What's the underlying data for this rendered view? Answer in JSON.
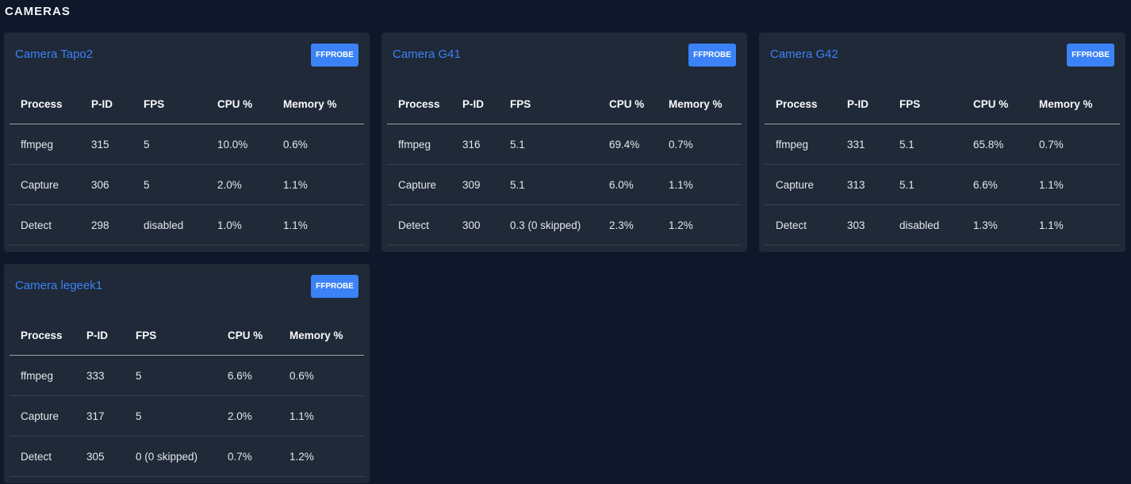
{
  "page": {
    "section_title": "CAMERAS"
  },
  "columns": [
    "Process",
    "P-ID",
    "FPS",
    "CPU %",
    "Memory %"
  ],
  "ffprobe_label": "FFPROBE",
  "cameras": [
    {
      "title": "Camera Tapo2",
      "rows": [
        [
          "ffmpeg",
          "315",
          "5",
          "10.0%",
          "0.6%"
        ],
        [
          "Capture",
          "306",
          "5",
          "2.0%",
          "1.1%"
        ],
        [
          "Detect",
          "298",
          "disabled",
          "1.0%",
          "1.1%"
        ]
      ]
    },
    {
      "title": "Camera G41",
      "rows": [
        [
          "ffmpeg",
          "316",
          "5.1",
          "69.4%",
          "0.7%"
        ],
        [
          "Capture",
          "309",
          "5.1",
          "6.0%",
          "1.1%"
        ],
        [
          "Detect",
          "300",
          "0.3 (0 skipped)",
          "2.3%",
          "1.2%"
        ]
      ]
    },
    {
      "title": "Camera G42",
      "rows": [
        [
          "ffmpeg",
          "331",
          "5.1",
          "65.8%",
          "0.7%"
        ],
        [
          "Capture",
          "313",
          "5.1",
          "6.6%",
          "1.1%"
        ],
        [
          "Detect",
          "303",
          "disabled",
          "1.3%",
          "1.1%"
        ]
      ]
    },
    {
      "title": "Camera legeek1",
      "rows": [
        [
          "ffmpeg",
          "333",
          "5",
          "6.6%",
          "0.6%"
        ],
        [
          "Capture",
          "317",
          "5",
          "2.0%",
          "1.1%"
        ],
        [
          "Detect",
          "305",
          "0 (0 skipped)",
          "0.7%",
          "1.2%"
        ]
      ]
    }
  ],
  "colors": {
    "background": "#0f172a",
    "card": "#1f2937",
    "accent": "#3b82f6",
    "text": "#e5e7eb"
  }
}
